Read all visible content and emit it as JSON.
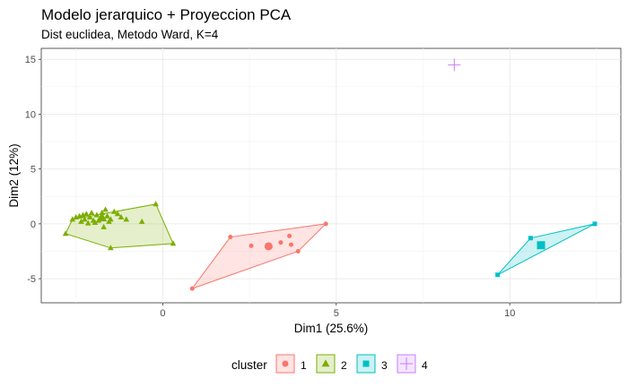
{
  "chart_data": {
    "type": "scatter",
    "title": "Modelo jerarquico + Proyeccion PCA",
    "subtitle": "Dist euclidea, Metodo Ward, K=4",
    "xlabel": "Dim1 (25.6%)",
    "ylabel": "Dim2 (12%)",
    "xlim": [
      -3.5,
      13.2
    ],
    "ylim": [
      -7.2,
      16.0
    ],
    "xticks": [
      0,
      5,
      10
    ],
    "yticks": [
      -5,
      0,
      5,
      10,
      15
    ],
    "xtick_labels": [
      "0",
      "5",
      "10"
    ],
    "ytick_labels": [
      "-5",
      "0",
      "5",
      "10",
      "15"
    ],
    "grid": true,
    "legend": {
      "title": "cluster",
      "position": "bottom"
    },
    "series": [
      {
        "name": "1",
        "color": "#F8766D",
        "marker": "circle",
        "hull": [
          [
            0.85,
            -5.9
          ],
          [
            1.95,
            -1.2
          ],
          [
            4.7,
            0.0
          ],
          [
            3.9,
            -2.5
          ]
        ],
        "points": [
          [
            0.85,
            -5.9
          ],
          [
            1.95,
            -1.2
          ],
          [
            2.55,
            -2.0
          ],
          [
            3.1,
            -2.1
          ],
          [
            3.4,
            -1.7
          ],
          [
            3.65,
            -1.1
          ],
          [
            3.7,
            -1.9
          ],
          [
            3.9,
            -2.5
          ],
          [
            4.7,
            0.0
          ]
        ],
        "centroid": [
          3.05,
          -2.05
        ]
      },
      {
        "name": "2",
        "color": "#7CAE00",
        "marker": "triangle",
        "hull": [
          [
            -2.8,
            -0.9
          ],
          [
            -2.6,
            0.4
          ],
          [
            -0.2,
            1.8
          ],
          [
            0.3,
            -1.8
          ],
          [
            -1.5,
            -2.2
          ]
        ],
        "points": [
          [
            -2.8,
            -0.9
          ],
          [
            -2.6,
            0.4
          ],
          [
            -2.5,
            0.6
          ],
          [
            -2.4,
            0.7
          ],
          [
            -2.3,
            0.8
          ],
          [
            -2.2,
            0.9
          ],
          [
            -2.1,
            0.6
          ],
          [
            -2.0,
            0.3
          ],
          [
            -1.9,
            0.8
          ],
          [
            -1.8,
            0.5
          ],
          [
            -1.75,
            1.0
          ],
          [
            -1.65,
            1.3
          ],
          [
            -1.6,
            0.7
          ],
          [
            -1.5,
            0.4
          ],
          [
            -1.4,
            1.1
          ],
          [
            -1.3,
            0.9
          ],
          [
            -2.25,
            0.4
          ],
          [
            -2.05,
            1.0
          ],
          [
            -1.85,
            0.3
          ],
          [
            -1.55,
            0.2
          ],
          [
            -1.2,
            0.6
          ],
          [
            -0.6,
            0.2
          ],
          [
            -0.2,
            1.8
          ],
          [
            0.3,
            -1.8
          ],
          [
            -1.5,
            -2.2
          ],
          [
            -2.35,
            0.2
          ],
          [
            -1.95,
            0.1
          ],
          [
            -1.7,
            -0.3
          ],
          [
            -2.15,
            0.05
          ],
          [
            -1.05,
            0.4
          ]
        ],
        "centroid": [
          -1.75,
          0.55
        ]
      },
      {
        "name": "3",
        "color": "#00BFC4",
        "marker": "square",
        "hull": [
          [
            9.65,
            -4.65
          ],
          [
            10.6,
            -1.3
          ],
          [
            12.45,
            0.0
          ]
        ],
        "points": [
          [
            9.65,
            -4.65
          ],
          [
            10.6,
            -1.3
          ],
          [
            12.45,
            0.0
          ]
        ],
        "centroid": [
          10.9,
          -1.95
        ]
      },
      {
        "name": "4",
        "color": "#C77CFF",
        "marker": "plus",
        "hull": [],
        "points": [
          [
            8.4,
            14.5
          ]
        ],
        "centroid": null
      }
    ]
  }
}
